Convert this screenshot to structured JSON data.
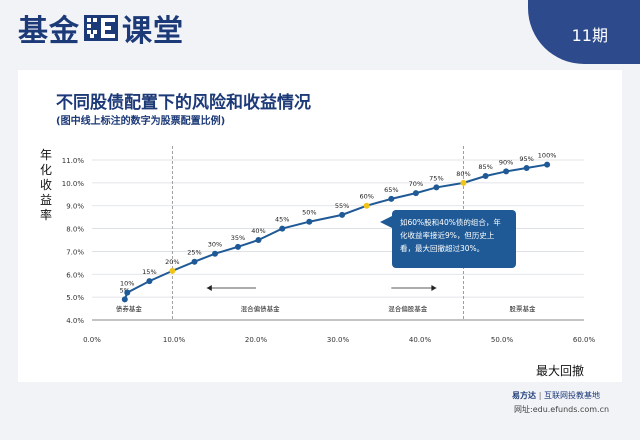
{
  "header": {
    "brand_left": "基金",
    "brand_right": "课堂",
    "issue": "11期",
    "colors": {
      "brand": "#1d3a78",
      "tab": "#2d4a8c"
    }
  },
  "chart_data": {
    "type": "line",
    "title": "不同股债配置下的风险和收益情况",
    "subtitle": "(图中线上标注的数字为股票配置比例)",
    "ylabel": "年化收益率",
    "xlabel": "最大回撤",
    "xlim": [
      0,
      60
    ],
    "ylim": [
      4,
      11
    ],
    "xticks": [
      "0.0%",
      "10.0%",
      "20.0%",
      "30.0%",
      "40.0%",
      "50.0%",
      "60.0%"
    ],
    "xtick_values": [
      0,
      10,
      20,
      30,
      40,
      50,
      60
    ],
    "yticks": [
      "4.0%",
      "5.0%",
      "6.0%",
      "7.0%",
      "8.0%",
      "9.0%",
      "10.0%",
      "11.0%"
    ],
    "ytick_values": [
      4,
      5,
      6,
      7,
      8,
      9,
      10,
      11
    ],
    "grid": "horizontal",
    "series": [
      {
        "values": [
          {
            "x": 4.0,
            "y": 4.9,
            "label": "5%"
          },
          {
            "x": 4.3,
            "y": 5.2,
            "label": "10%"
          },
          {
            "x": 7.0,
            "y": 5.7,
            "label": "15%"
          },
          {
            "x": 9.8,
            "y": 6.15,
            "label": "20%",
            "highlight": true
          },
          {
            "x": 12.5,
            "y": 6.55,
            "label": "25%"
          },
          {
            "x": 15.0,
            "y": 6.9,
            "label": "30%"
          },
          {
            "x": 17.8,
            "y": 7.2,
            "label": "35%"
          },
          {
            "x": 20.3,
            "y": 7.5,
            "label": "40%"
          },
          {
            "x": 23.2,
            "y": 8.0,
            "label": "45%"
          },
          {
            "x": 26.5,
            "y": 8.3,
            "label": "50%"
          },
          {
            "x": 30.5,
            "y": 8.6,
            "label": "55%"
          },
          {
            "x": 33.5,
            "y": 9.0,
            "label": "60%",
            "highlight": true
          },
          {
            "x": 36.5,
            "y": 9.3,
            "label": "65%"
          },
          {
            "x": 39.5,
            "y": 9.55,
            "label": "70%"
          },
          {
            "x": 42.0,
            "y": 9.8,
            "label": "75%"
          },
          {
            "x": 45.3,
            "y": 10.0,
            "label": "80%",
            "highlight": true
          },
          {
            "x": 48.0,
            "y": 10.3,
            "label": "85%"
          },
          {
            "x": 50.5,
            "y": 10.5,
            "label": "90%"
          },
          {
            "x": 53.0,
            "y": 10.65,
            "label": "95%"
          },
          {
            "x": 55.5,
            "y": 10.8,
            "label": "100%"
          }
        ]
      }
    ],
    "region_dividers": [
      9.8,
      45.3
    ],
    "regions": [
      {
        "label": "债券基金",
        "x": 4.5
      },
      {
        "label": "混合偏债基金",
        "x": 20.5,
        "arrow": "left",
        "arrow_from": 20.0,
        "arrow_to": 14.0
      },
      {
        "label": "混合偏股基金",
        "x": 38.5,
        "arrow": "right",
        "arrow_from": 36.5,
        "arrow_to": 42.0
      },
      {
        "label": "股票基金",
        "x": 52.5
      }
    ],
    "callout": "如60%股和40%债的组合，年化收益率接近9%，但历史上看，最大回撤超过30%。",
    "colors": {
      "line": "#1f5a96",
      "highlight": "#f0c419"
    }
  },
  "footer": {
    "company": "易方达",
    "tagline": "互联网投教基地",
    "url": "网址:edu.efunds.com.cn"
  }
}
